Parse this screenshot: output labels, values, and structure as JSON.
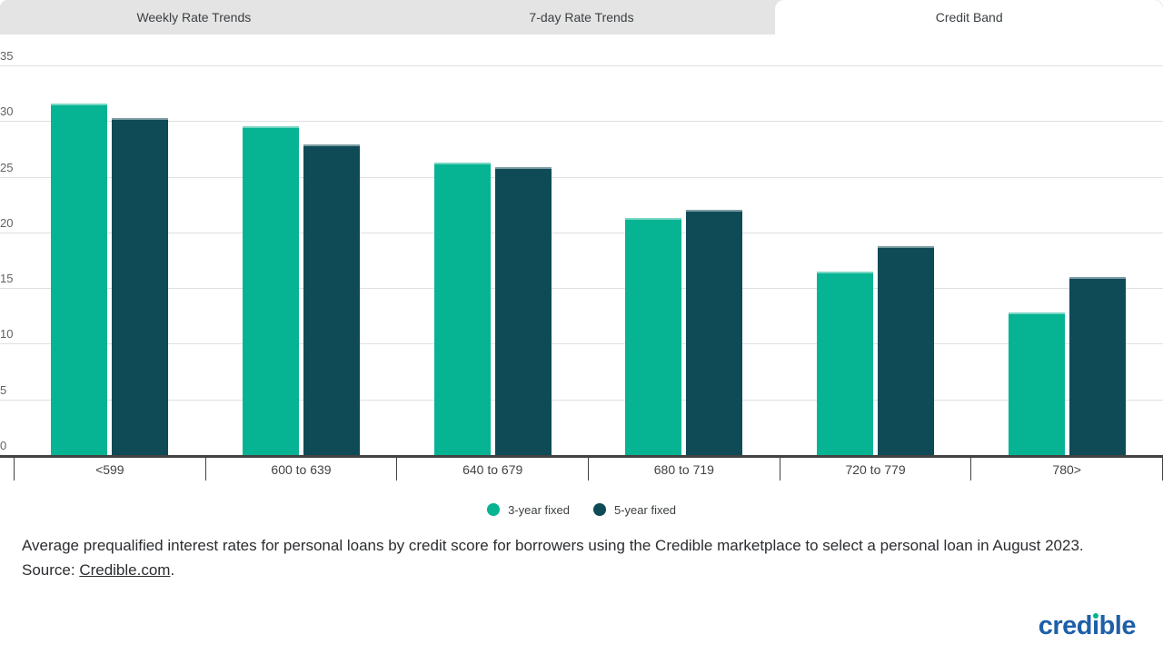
{
  "tabs": [
    {
      "label": "Weekly Rate Trends",
      "active": false
    },
    {
      "label": "7-day Rate Trends",
      "active": false
    },
    {
      "label": "Credit Band",
      "active": true
    }
  ],
  "chart_data": {
    "type": "bar",
    "categories": [
      "<599",
      "600 to 639",
      "640 to 679",
      "680 to 719",
      "720 to 779",
      "780>"
    ],
    "series": [
      {
        "name": "3-year fixed",
        "color": "#06b392",
        "values": [
          31.6,
          29.5,
          26.3,
          21.3,
          16.5,
          12.8
        ]
      },
      {
        "name": "5-year fixed",
        "color": "#0f4a57",
        "values": [
          30.3,
          27.9,
          25.9,
          22.0,
          18.8,
          16.0
        ]
      }
    ],
    "title": "",
    "xlabel": "",
    "ylabel": "",
    "ylim": [
      0,
      35
    ],
    "yticks": [
      0,
      5,
      10,
      15,
      20,
      25,
      30,
      35
    ],
    "grid": true,
    "legend_position": "bottom"
  },
  "caption": {
    "text_before_link": "Average prequalified interest rates for personal loans by credit score for borrowers using the Credible marketplace to select a personal loan in August 2023. Source: ",
    "link_text": "Credible.com",
    "text_after_link": "."
  },
  "brand": {
    "name": "credible",
    "color": "#1e5fa8",
    "dot_color": "#06b392"
  }
}
